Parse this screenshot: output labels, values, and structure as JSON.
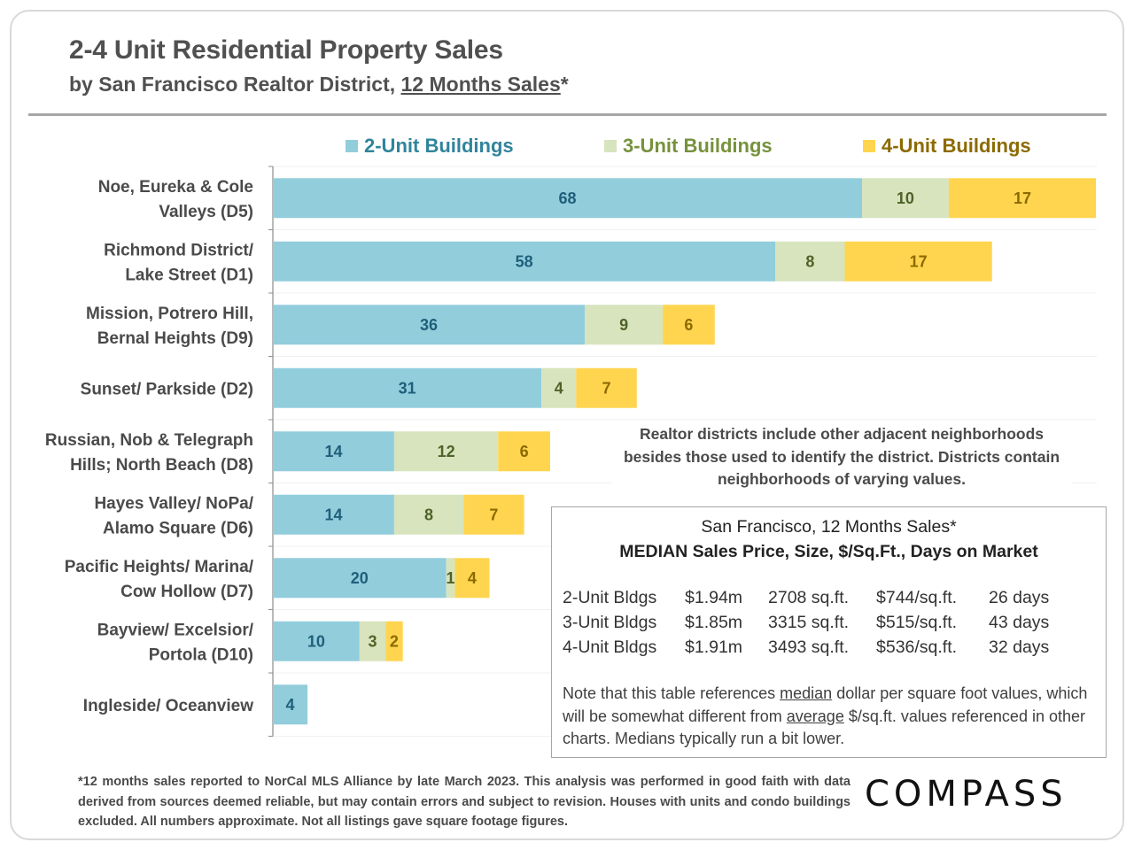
{
  "header": {
    "title": "2-4 Unit Residential Property Sales",
    "subtitle_prefix": "by San Francisco Realtor District, ",
    "subtitle_underlined": "12 Months Sales",
    "subtitle_suffix": "*"
  },
  "colors": {
    "two_unit": "#92cddc",
    "three_unit": "#d7e4bd",
    "four_unit": "#ffd54f",
    "two_unit_text": "#1f5f7a",
    "three_unit_text": "#4f6228",
    "four_unit_text": "#8c6a00",
    "legend_two": "#31849b",
    "legend_three": "#76923c",
    "legend_four": "#8c6a00"
  },
  "chart_data": {
    "type": "bar",
    "orientation": "horizontal",
    "stacked": true,
    "title": "2-4 Unit Residential Property Sales",
    "subtitle": "by San Francisco Realtor District, 12 Months Sales*",
    "xlabel": "",
    "ylabel": "",
    "legend_position": "top",
    "grid": true,
    "xlim": [
      0,
      95
    ],
    "categories": [
      "Noe, Eureka & Cole Valleys (D5)",
      "Richmond District/ Lake Street (D1)",
      "Mission, Potrero Hill, Bernal Heights (D9)",
      "Sunset/ Parkside (D2)",
      "Russian, Nob & Telegraph Hills; North Beach (D8)",
      "Hayes Valley/ NoPa/ Alamo Square (D6)",
      "Pacific Heights/ Marina/ Cow Hollow (D7)",
      "Bayview/ Excelsior/ Portola (D10)",
      "Ingleside/ Oceanview"
    ],
    "category_lines": [
      [
        "Noe, Eureka & Cole",
        "Valleys (D5)"
      ],
      [
        "Richmond District/",
        "Lake Street (D1)"
      ],
      [
        "Mission, Potrero Hill,",
        "Bernal Heights (D9)"
      ],
      [
        "Sunset/ Parkside (D2)"
      ],
      [
        "Russian, Nob & Telegraph",
        "Hills; North Beach (D8)"
      ],
      [
        "Hayes Valley/ NoPa/",
        "Alamo Square (D6)"
      ],
      [
        "Pacific Heights/ Marina/",
        "Cow Hollow (D7)"
      ],
      [
        "Bayview/ Excelsior/",
        "Portola (D10)"
      ],
      [
        "Ingleside/ Oceanview"
      ]
    ],
    "series": [
      {
        "name": "2-Unit Buildings",
        "values": [
          68,
          58,
          36,
          31,
          14,
          14,
          20,
          10,
          4
        ]
      },
      {
        "name": "3-Unit Buildings",
        "values": [
          10,
          8,
          9,
          4,
          12,
          8,
          1,
          3,
          0
        ]
      },
      {
        "name": "4-Unit Buildings",
        "values": [
          17,
          17,
          6,
          7,
          6,
          7,
          4,
          2,
          0
        ]
      }
    ]
  },
  "legend": [
    {
      "label": "2-Unit Buildings"
    },
    {
      "label": "3-Unit Buildings"
    },
    {
      "label": "4-Unit Buildings"
    }
  ],
  "district_note": "Realtor districts include other adjacent neighborhoods besides those used to identify the district. Districts contain neighborhoods of varying values.",
  "median_box": {
    "title_line1": "San Francisco, 12 Months Sales*",
    "title_line2": "MEDIAN Sales Price, Size, $/Sq.Ft., Days on Market",
    "rows": [
      {
        "type": "2-Unit Bldgs",
        "price": "$1.94m",
        "size": "2708 sq.ft.",
        "ppsf": "$744/sq.ft.",
        "dom": "26 days"
      },
      {
        "type": "3-Unit Bldgs",
        "price": "$1.85m",
        "size": "3315 sq.ft.",
        "ppsf": "$515/sq.ft.",
        "dom": "43 days"
      },
      {
        "type": "4-Unit Bldgs",
        "price": "$1.91m",
        "size": "3493 sq.ft.",
        "ppsf": "$536/sq.ft.",
        "dom": "32 days"
      }
    ],
    "note_part1": "Note that this table references ",
    "note_median": "median",
    "note_part2": " dollar per square foot values, which will be somewhat different from ",
    "note_average": "average",
    "note_part3": " $/sq.ft. values referenced in other charts. Medians typically run a bit lower."
  },
  "footnote": "*12 months sales reported to NorCal MLS Alliance by late March 2023. This analysis was performed in good faith with data derived from sources deemed reliable, but may contain errors and subject to revision. Houses with units and condo buildings excluded. All numbers approximate. Not all listings gave square footage figures.",
  "logo": "COMPASS"
}
